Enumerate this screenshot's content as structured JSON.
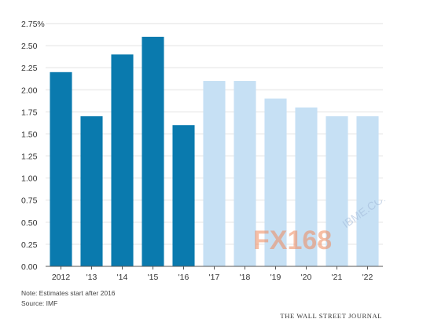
{
  "chart_data": {
    "type": "bar",
    "categories": [
      "2012",
      "'13",
      "'14",
      "'15",
      "'16",
      "'17",
      "'18",
      "'19",
      "'20",
      "'21",
      "'22"
    ],
    "values": [
      2.2,
      1.7,
      2.4,
      2.6,
      1.6,
      2.1,
      2.1,
      1.9,
      1.8,
      1.7,
      1.7
    ],
    "estimate_start_index": 5,
    "ylim": [
      0,
      2.75
    ],
    "yticks": [
      "0.00",
      "0.25",
      "0.50",
      "0.75",
      "1.00",
      "1.25",
      "1.50",
      "1.75",
      "2.00",
      "2.25",
      "2.50",
      "2.75%"
    ],
    "grid": true,
    "colors": {
      "actual": "#0a7aae",
      "estimate": "#c6e0f4"
    }
  },
  "footer": {
    "note": "Note: Estimates start after 2016",
    "source": "Source: IMF",
    "credit": "THE WALL STREET JOURNAL"
  },
  "watermark": {
    "brand": "FX168",
    "domain": "IBME.COM"
  }
}
